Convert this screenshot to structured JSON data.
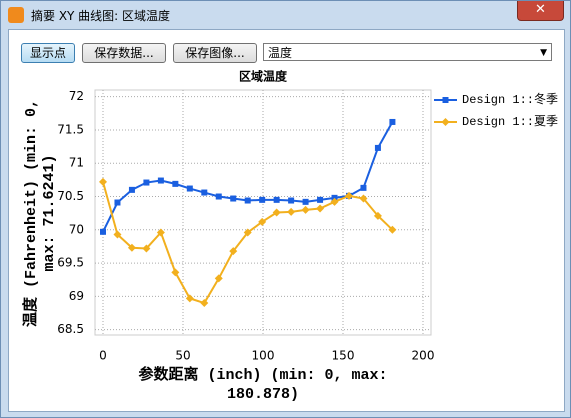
{
  "window": {
    "title": "摘要 XY 曲线图: 区域温度"
  },
  "toolbar": {
    "buttons": [
      "显示点",
      "保存数据...",
      "保存图像..."
    ],
    "dropdown": "温度"
  },
  "chart_data": {
    "type": "line",
    "title": "区域温度",
    "x_label": [
      "参数距离 (inch) (min: 0, max:",
      "180.878)"
    ],
    "y_label": [
      "温度 (Fahrenheit) (min: 0,",
      "max: 71.6241)"
    ],
    "xlim": [
      -5,
      205
    ],
    "ylim": [
      68.42,
      72.1
    ],
    "xticks": [
      0,
      50,
      100,
      150,
      200
    ],
    "yticks": [
      68.5,
      69,
      69.5,
      70,
      70.5,
      71,
      71.5,
      72
    ],
    "grid": true,
    "legend": "right",
    "x": [
      0,
      9.04,
      18.09,
      27.13,
      36.18,
      45.22,
      54.26,
      63.31,
      72.35,
      81.4,
      90.44,
      99.48,
      108.53,
      117.57,
      126.61,
      135.66,
      144.7,
      153.75,
      162.79,
      171.83,
      180.88
    ],
    "series": [
      {
        "name": "Design 1::冬季",
        "color": "#1a5fe0",
        "marker": "square",
        "values": [
          69.97,
          70.41,
          70.6,
          70.71,
          70.74,
          70.69,
          70.62,
          70.56,
          70.5,
          70.47,
          70.44,
          70.45,
          70.45,
          70.44,
          70.42,
          70.45,
          70.48,
          70.51,
          70.63,
          71.23,
          71.62
        ]
      },
      {
        "name": "Design 1::夏季",
        "color": "#f2b01e",
        "marker": "diamond",
        "values": [
          70.72,
          69.93,
          69.73,
          69.72,
          69.96,
          69.36,
          68.97,
          68.9,
          69.27,
          69.68,
          69.96,
          70.12,
          70.26,
          70.27,
          70.3,
          70.32,
          70.42,
          70.51,
          70.47,
          70.21,
          70.0
        ]
      }
    ]
  }
}
